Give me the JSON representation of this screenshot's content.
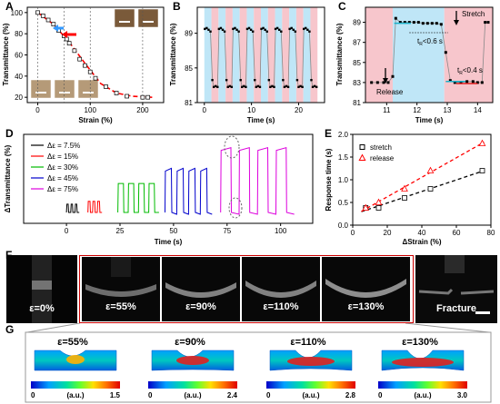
{
  "panels": {
    "A": "A",
    "B": "B",
    "C": "C",
    "D": "D",
    "E": "E",
    "F": "F",
    "G": "G"
  },
  "chart_data": [
    {
      "id": "A",
      "type": "scatter",
      "xlabel": "Strain (%)",
      "ylabel": "Transmittance (%)",
      "xlim": [
        -20,
        240
      ],
      "ylim": [
        15,
        105
      ],
      "xticks": [
        "0",
        "100",
        "200"
      ],
      "yticks": [
        "20",
        "40",
        "60",
        "80",
        "100"
      ],
      "x": [
        0,
        10,
        20,
        30,
        40,
        50,
        55,
        60,
        70,
        80,
        90,
        100,
        110,
        130,
        150,
        170,
        200,
        210
      ],
      "y": [
        100,
        97,
        93,
        89,
        83,
        78,
        75,
        71,
        64,
        56,
        50,
        44,
        38,
        30,
        24,
        21,
        20,
        20
      ],
      "fit_x": [
        0,
        30,
        60,
        90,
        120,
        150,
        180,
        220
      ],
      "fit_y": [
        100,
        89,
        72,
        52,
        33,
        24,
        21,
        20
      ]
    },
    {
      "id": "B",
      "type": "line",
      "xlabel": "Time (s)",
      "ylabel": "Transmittance (%)",
      "xlim": [
        -1.5,
        25.5
      ],
      "ylim": [
        81,
        92
      ],
      "xticks": [
        "0",
        "10",
        "20"
      ],
      "yticks": [
        "81",
        "85",
        "89"
      ],
      "high": 89.5,
      "low": 82.8,
      "period": 3.0,
      "cycles": 8
    },
    {
      "id": "C",
      "type": "line",
      "xlabel": "Time (s)",
      "ylabel": "Transmittance (%)",
      "xlim": [
        10.3,
        14.5
      ],
      "ylim": [
        81,
        90.5
      ],
      "xticks": [
        "11",
        "12",
        "13",
        "14"
      ],
      "yticks": [
        "81",
        "83",
        "85",
        "87",
        "89"
      ],
      "annotations": {
        "stretch": "Stretch",
        "release": "Release",
        "t1": "t",
        "t1sub": "R",
        "t1rest": "<0.6 s",
        "t2": "t",
        "t2sub": "R",
        "t2rest": "<0.4 s"
      }
    },
    {
      "id": "D",
      "type": "line",
      "xlabel": "Time (s)",
      "ylabel": "ΔTransmittance (%)",
      "xlim": [
        -20,
        115
      ],
      "xticks": [
        "0",
        "25",
        "50",
        "75",
        "100"
      ],
      "series": [
        {
          "name": "Δε = 7.5%",
          "color": "#000000",
          "amplitude": 0.12,
          "start": 0
        },
        {
          "name": "Δε = 15%",
          "color": "#ff0000",
          "amplitude": 0.16,
          "start": 10
        },
        {
          "name": "Δε = 30%",
          "color": "#00bb00",
          "amplitude": 0.42,
          "start": 24
        },
        {
          "name": "Δε = 45%",
          "color": "#0000cc",
          "amplitude": 0.62,
          "start": 46
        },
        {
          "name": "Δε = 75%",
          "color": "#dd00dd",
          "amplitude": 0.92,
          "start": 72
        }
      ]
    },
    {
      "id": "E",
      "type": "scatter",
      "xlabel": "ΔStrain (%)",
      "ylabel": "Response time (s)",
      "xlim": [
        0,
        80
      ],
      "ylim": [
        0,
        2.0
      ],
      "xticks": [
        "0",
        "20",
        "40",
        "60",
        "80"
      ],
      "yticks": [
        "0.0",
        "0.5",
        "1.0",
        "1.5",
        "2.0"
      ],
      "series": [
        {
          "name": "stretch",
          "color": "#000000",
          "marker": "square",
          "x": [
            7.5,
            15,
            30,
            45,
            75
          ],
          "y": [
            0.38,
            0.38,
            0.6,
            0.8,
            1.2
          ]
        },
        {
          "name": "release",
          "color": "#ff0000",
          "marker": "triangle",
          "x": [
            7.5,
            15,
            30,
            45,
            75
          ],
          "y": [
            0.38,
            0.5,
            0.8,
            1.2,
            1.8
          ]
        }
      ]
    }
  ],
  "photos": [
    {
      "label": "ε=0%"
    },
    {
      "label": "ε=55%"
    },
    {
      "label": "ε=90%"
    },
    {
      "label": "ε=110%"
    },
    {
      "label": "ε=130%"
    },
    {
      "label": "Fracture"
    }
  ],
  "fea": [
    {
      "title": "ε=55%",
      "min": "0",
      "unit": "(a.u.)",
      "max": "1.5"
    },
    {
      "title": "ε=90%",
      "min": "0",
      "unit": "(a.u.)",
      "max": "2.4"
    },
    {
      "title": "ε=110%",
      "min": "0",
      "unit": "(a.u.)",
      "max": "2.8"
    },
    {
      "title": "ε=130%",
      "min": "0",
      "unit": "(a.u.)",
      "max": "3.0"
    }
  ],
  "colors": {
    "red": "#ff0000",
    "blue": "#3399ff",
    "lightblue": "#bfe6f7",
    "pink": "#f7c6cc"
  }
}
